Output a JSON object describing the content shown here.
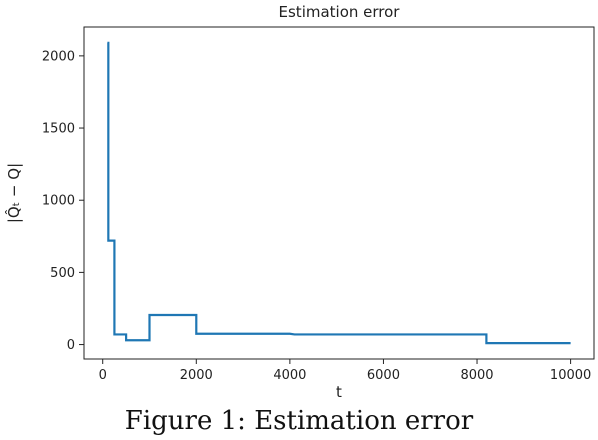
{
  "chart_data": {
    "type": "line",
    "title": "Estimation error",
    "xlabel": "t",
    "ylabel": "|Q̂ₜ − Q|",
    "xlim": [
      -400,
      10500
    ],
    "ylim": [
      -100,
      2200
    ],
    "xticks": [
      0,
      2000,
      4000,
      6000,
      8000,
      10000
    ],
    "yticks": [
      0,
      500,
      1000,
      1500,
      2000
    ],
    "grid": false,
    "line_color": "#1f77b4",
    "series": [
      {
        "x": [
          100,
          120,
          120,
          250,
          250,
          500,
          500,
          1000,
          1000,
          2000,
          2000,
          4000,
          4100,
          8200,
          8200,
          10000
        ],
        "y": [
          2090,
          2090,
          720,
          720,
          70,
          70,
          30,
          30,
          205,
          205,
          75,
          75,
          70,
          70,
          10,
          10
        ]
      }
    ]
  },
  "caption": "Figure 1: Estimation error"
}
